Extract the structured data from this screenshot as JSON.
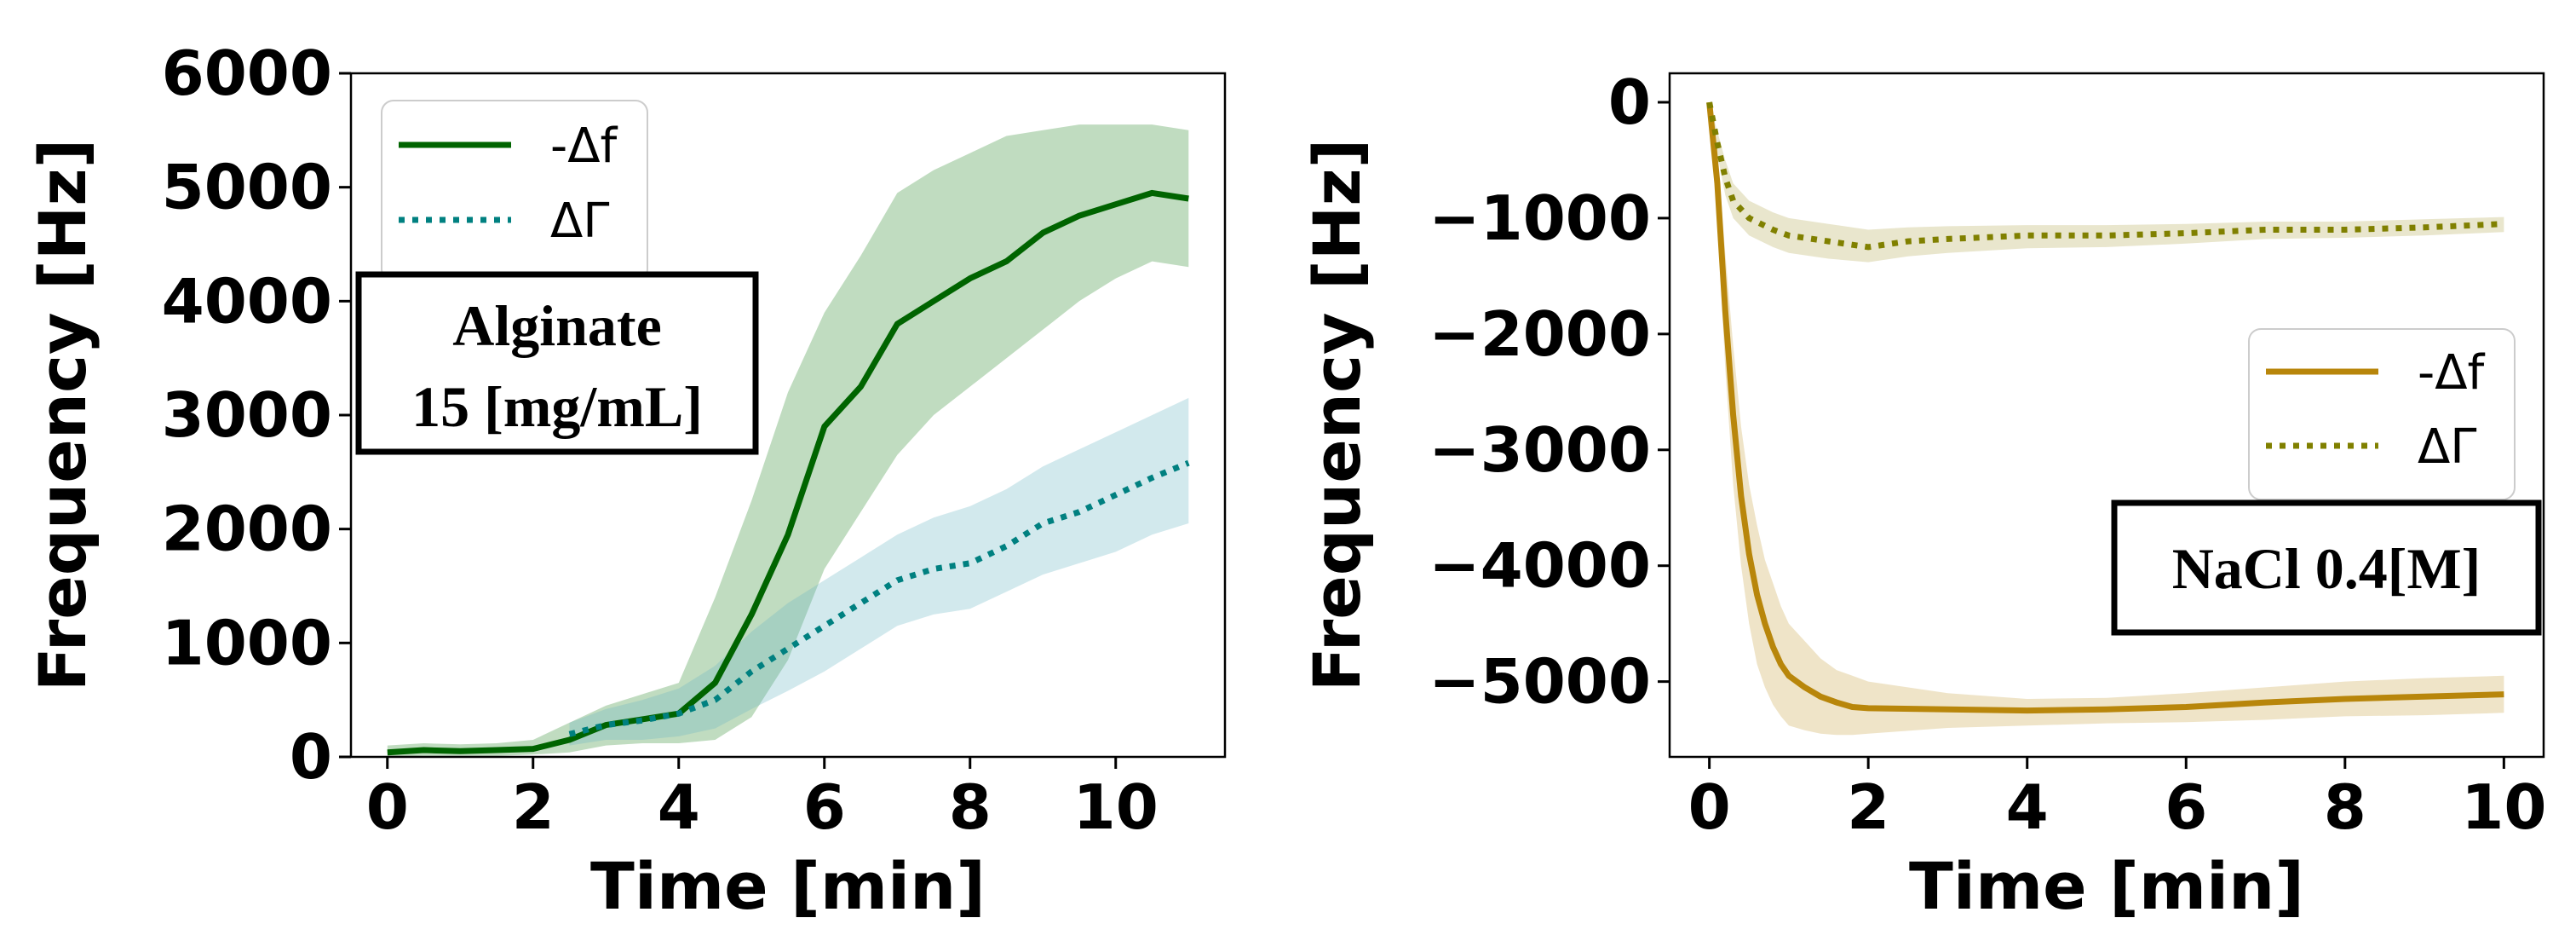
{
  "chart_data": [
    {
      "type": "line",
      "xlabel": "Time [min]",
      "ylabel": "Frequency [Hz]",
      "xlim": [
        -0.5,
        11.5
      ],
      "ylim": [
        0,
        6000
      ],
      "xticks": [
        0,
        2,
        4,
        6,
        8,
        10
      ],
      "yticks": [
        0,
        1000,
        2000,
        3000,
        4000,
        5000,
        6000
      ],
      "legend_position": "top-left",
      "annotation": [
        "Alginate",
        "15 [mg/mL]"
      ],
      "series": [
        {
          "name": "-Δf",
          "style": "solid",
          "color": "#006400",
          "band_color": "#2e8b2e",
          "x": [
            0,
            0.5,
            1,
            1.5,
            2,
            2.5,
            3,
            3.5,
            4,
            4.5,
            5,
            5.5,
            6,
            6.5,
            7,
            7.5,
            8,
            8.5,
            9,
            9.5,
            10,
            10.5,
            11
          ],
          "y": [
            40,
            60,
            50,
            60,
            70,
            150,
            280,
            330,
            380,
            650,
            1250,
            1950,
            2900,
            3250,
            3800,
            4000,
            4200,
            4350,
            4600,
            4750,
            4850,
            4950,
            4900
          ],
          "upper": [
            100,
            120,
            110,
            120,
            150,
            300,
            450,
            550,
            650,
            1400,
            2250,
            3200,
            3900,
            4400,
            4950,
            5150,
            5300,
            5450,
            5500,
            5550,
            5550,
            5550,
            5500
          ],
          "lower": [
            0,
            10,
            10,
            10,
            20,
            40,
            100,
            120,
            120,
            150,
            350,
            850,
            1650,
            2150,
            2650,
            3000,
            3250,
            3500,
            3750,
            4000,
            4200,
            4350,
            4300
          ]
        },
        {
          "name": "ΔΓ",
          "style": "dotted",
          "color": "#008080",
          "band_color": "#6ab7c2",
          "x": [
            2.5,
            3,
            3.5,
            4,
            4.5,
            5,
            5.5,
            6,
            6.5,
            7,
            7.5,
            8,
            8.5,
            9,
            9.5,
            10,
            10.5,
            11
          ],
          "y": [
            200,
            280,
            320,
            380,
            500,
            750,
            950,
            1150,
            1350,
            1550,
            1650,
            1700,
            1850,
            2050,
            2150,
            2300,
            2450,
            2580
          ],
          "upper": [
            300,
            420,
            500,
            600,
            800,
            1100,
            1350,
            1550,
            1750,
            1950,
            2100,
            2200,
            2350,
            2550,
            2700,
            2850,
            3000,
            3150
          ],
          "lower": [
            100,
            150,
            150,
            180,
            250,
            420,
            580,
            750,
            950,
            1150,
            1250,
            1300,
            1450,
            1600,
            1700,
            1800,
            1950,
            2050
          ]
        }
      ]
    },
    {
      "type": "line",
      "xlabel": "Time [min]",
      "ylabel": "Frequency [Hz]",
      "xlim": [
        -0.5,
        10.5
      ],
      "ylim": [
        -5650,
        250
      ],
      "xticks": [
        0,
        2,
        4,
        6,
        8,
        10
      ],
      "yticks": [
        0,
        -1000,
        -2000,
        -3000,
        -4000,
        -5000
      ],
      "legend_position": "center-right",
      "annotation": [
        "NaCl 0.4[M]"
      ],
      "series": [
        {
          "name": "-Δf",
          "style": "solid",
          "color": "#b8860b",
          "band_color": "#c9a64a",
          "x": [
            0,
            0.1,
            0.2,
            0.3,
            0.4,
            0.5,
            0.6,
            0.7,
            0.8,
            0.9,
            1,
            1.2,
            1.4,
            1.6,
            1.8,
            2,
            3,
            4,
            5,
            6,
            7,
            8,
            9,
            10
          ],
          "y": [
            0,
            -700,
            -1800,
            -2700,
            -3400,
            -3900,
            -4250,
            -4500,
            -4700,
            -4850,
            -4950,
            -5050,
            -5130,
            -5180,
            -5220,
            -5230,
            -5240,
            -5250,
            -5240,
            -5220,
            -5180,
            -5150,
            -5130,
            -5110
          ],
          "upper": [
            0,
            -400,
            -1300,
            -2100,
            -2800,
            -3300,
            -3650,
            -3950,
            -4150,
            -4350,
            -4500,
            -4650,
            -4800,
            -4900,
            -4950,
            -5000,
            -5100,
            -5150,
            -5140,
            -5100,
            -5050,
            -5000,
            -4970,
            -4950
          ],
          "lower": [
            0,
            -1000,
            -2300,
            -3300,
            -4000,
            -4500,
            -4850,
            -5050,
            -5200,
            -5300,
            -5380,
            -5420,
            -5450,
            -5460,
            -5460,
            -5450,
            -5400,
            -5380,
            -5360,
            -5350,
            -5330,
            -5300,
            -5290,
            -5270
          ]
        },
        {
          "name": "ΔΓ",
          "style": "dotted",
          "color": "#808000",
          "band_color": "#b6ad5a",
          "x": [
            0,
            0.1,
            0.2,
            0.3,
            0.5,
            0.8,
            1,
            1.5,
            2,
            2.5,
            3,
            4,
            5,
            6,
            7,
            8,
            9,
            10
          ],
          "y": [
            0,
            -350,
            -650,
            -850,
            -1000,
            -1100,
            -1150,
            -1200,
            -1250,
            -1200,
            -1180,
            -1150,
            -1150,
            -1130,
            -1100,
            -1100,
            -1080,
            -1050
          ],
          "upper": [
            0,
            -250,
            -500,
            -700,
            -850,
            -950,
            -1000,
            -1050,
            -1100,
            -1080,
            -1070,
            -1060,
            -1060,
            -1050,
            -1030,
            -1030,
            -1010,
            -990
          ],
          "lower": [
            0,
            -450,
            -800,
            -1000,
            -1150,
            -1250,
            -1300,
            -1350,
            -1380,
            -1330,
            -1300,
            -1260,
            -1250,
            -1220,
            -1180,
            -1170,
            -1150,
            -1120
          ]
        }
      ]
    }
  ]
}
